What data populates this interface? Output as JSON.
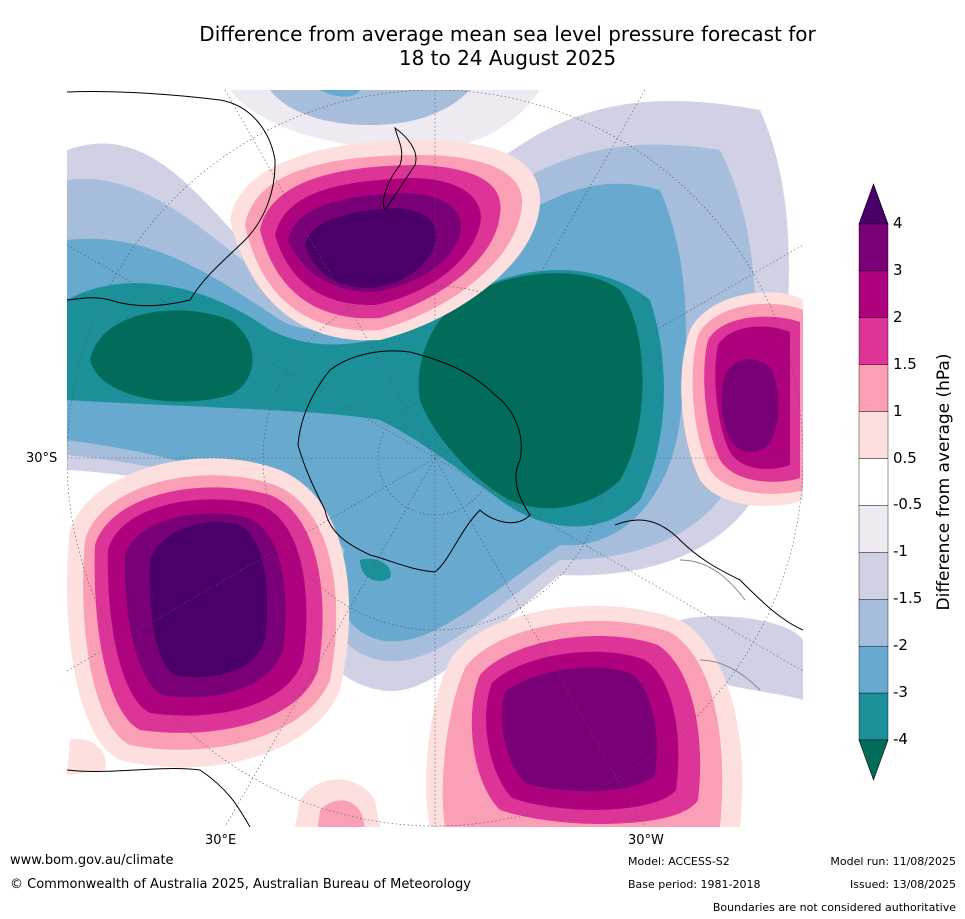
{
  "title_line1": "Difference from average mean sea level pressure forecast for",
  "title_line2": "18 to 24 August 2025",
  "lat_label": "30°S",
  "lon_labels": [
    "30°E",
    "30°W"
  ],
  "colorbar": {
    "label": "Difference from average (hPa)",
    "ticks": [
      "4",
      "3",
      "2",
      "1.5",
      "1",
      "0.5",
      "-0.5",
      "-1",
      "-1.5",
      "-2",
      "-3",
      "-4"
    ],
    "colors": [
      "#4a0068",
      "#7a0077",
      "#ae017e",
      "#dd3497",
      "#fa9fb5",
      "#fde0dd",
      "#ffffff",
      "#efe9f2",
      "#d1d1e6",
      "#a6bddb",
      "#67a9cf",
      "#1c9099",
      "#016c59"
    ]
  },
  "footer": {
    "website": "www.bom.gov.au/climate",
    "copyright": "© Commonwealth of Australia 2025, Australian Bureau of Meteorology",
    "model": "Model: ACCESS-S2",
    "base_period": "Base period: 1981-2018",
    "model_run": "Model run: 11/08/2025",
    "issued": "Issued: 13/08/2025",
    "disclaimer": "Boundaries are not considered authoritative"
  }
}
